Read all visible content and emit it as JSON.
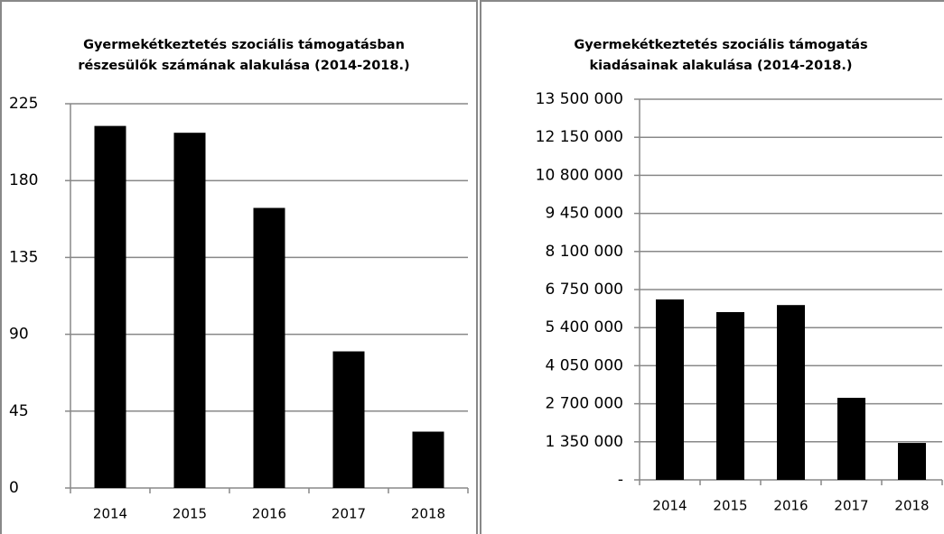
{
  "chart_data": [
    {
      "type": "bar",
      "title": [
        "Gyermekétkeztetés szociális támogatásban",
        "részesülők számának alakulása (2014-2018.)"
      ],
      "categories": [
        "2014",
        "2015",
        "2016",
        "2017",
        "2018"
      ],
      "values": [
        212,
        208,
        164,
        80,
        33
      ],
      "color": "#000000",
      "ylim": [
        0,
        225
      ],
      "yticks": [
        0,
        45,
        90,
        135,
        180,
        225
      ],
      "grid": true
    },
    {
      "type": "bar",
      "title": [
        "Gyermekétkeztetés szociális támogatás",
        "kiadásainak alakulása (2014-2018.)"
      ],
      "categories": [
        "2014",
        "2015",
        "2016",
        "2017",
        "2018"
      ],
      "values": [
        6400000,
        5950000,
        6200000,
        2910000,
        1310000
      ],
      "color": "#000000",
      "ylim": [
        0,
        13500000
      ],
      "yticks": [
        {
          "value": 0,
          "label": "-"
        },
        {
          "value": 1350000,
          "label": "1 350 000"
        },
        {
          "value": 2700000,
          "label": "2 700 000"
        },
        {
          "value": 4050000,
          "label": "4 050 000"
        },
        {
          "value": 5400000,
          "label": "5 400 000"
        },
        {
          "value": 6750000,
          "label": "6 750 000"
        },
        {
          "value": 8100000,
          "label": "8 100 000"
        },
        {
          "value": 9450000,
          "label": "9 450 000"
        },
        {
          "value": 10800000,
          "label": "10 800 000"
        },
        {
          "value": 12150000,
          "label": "12 150 000"
        },
        {
          "value": 13500000,
          "label": "13 500 000"
        }
      ],
      "grid": true
    }
  ]
}
